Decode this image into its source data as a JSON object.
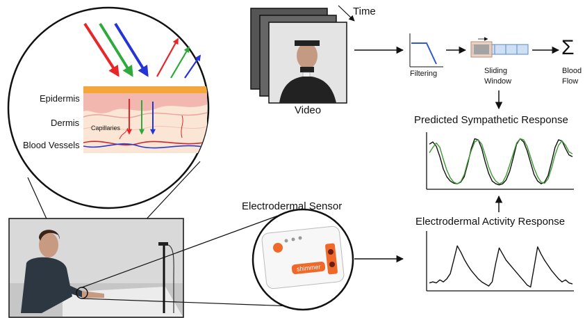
{
  "skin": {
    "layers": [
      "Epidermis",
      "Dermis",
      "Blood Vessels"
    ],
    "capillaries_label": "Capillaries"
  },
  "video": {
    "label": "Video",
    "time_label": "Time"
  },
  "pipeline": {
    "filtering_label": "Filtering",
    "sliding_label": "Sliding",
    "window_label": "Window",
    "blood_label": "Blood",
    "flow_label": "Flow",
    "sigma": "Σ"
  },
  "predicted": {
    "title": "Predicted Sympathetic Response"
  },
  "eda": {
    "title": "Electrodermal Activity Response"
  },
  "sensor": {
    "title": "Electrodermal Sensor",
    "brand": "shimmer"
  },
  "colors": {
    "red": "#e8262a",
    "green": "#2eaa3b",
    "blue": "#2434d6",
    "epidermis": "#f4a63a",
    "dermis": "#f2c7bf",
    "vessel_red": "#d0252c",
    "vessel_blue": "#2a3ad0",
    "sensor_orange": "#ef6a2a",
    "pred_green": "#3a9a2f"
  },
  "chart_data": [
    {
      "type": "line",
      "title": "Predicted Sympathetic Response",
      "xlabel": "",
      "ylabel": "",
      "grid": false,
      "series": [
        {
          "values": [
            0.78,
            0.82,
            0.74,
            0.55,
            0.32,
            0.18,
            0.1,
            0.06,
            0.05,
            0.08,
            0.18,
            0.42,
            0.7,
            0.88,
            0.86,
            0.7,
            0.45,
            0.24,
            0.1,
            0.05,
            0.03,
            0.05,
            0.12,
            0.28,
            0.52,
            0.78,
            0.88,
            0.82,
            0.66,
            0.44,
            0.22,
            0.1,
            0.05,
            0.08,
            0.2,
            0.45,
            0.72,
            0.86,
            0.84,
            0.7,
            0.58,
            0.55
          ]
        },
        {
          "values": [
            0.62,
            0.72,
            0.8,
            0.72,
            0.5,
            0.3,
            0.16,
            0.08,
            0.05,
            0.09,
            0.22,
            0.46,
            0.66,
            0.82,
            0.86,
            0.78,
            0.58,
            0.36,
            0.2,
            0.1,
            0.05,
            0.08,
            0.2,
            0.4,
            0.6,
            0.8,
            0.88,
            0.86,
            0.74,
            0.54,
            0.34,
            0.18,
            0.08,
            0.06,
            0.14,
            0.34,
            0.58,
            0.76,
            0.84,
            0.76,
            0.64,
            0.6
          ]
        }
      ]
    },
    {
      "type": "line",
      "title": "Electrodermal Activity Response",
      "xlabel": "",
      "ylabel": "",
      "grid": false,
      "series": [
        {
          "values": [
            0.1,
            0.12,
            0.1,
            0.16,
            0.12,
            0.18,
            0.28,
            0.55,
            0.82,
            0.7,
            0.56,
            0.44,
            0.34,
            0.26,
            0.18,
            0.12,
            0.08,
            0.04,
            0.12,
            0.48,
            0.78,
            0.66,
            0.54,
            0.46,
            0.38,
            0.3,
            0.22,
            0.14,
            0.06,
            0.02,
            0.4,
            0.8,
            0.66,
            0.54,
            0.44,
            0.34,
            0.26,
            0.18,
            0.12,
            0.16,
            0.1,
            0.08
          ]
        }
      ]
    }
  ]
}
